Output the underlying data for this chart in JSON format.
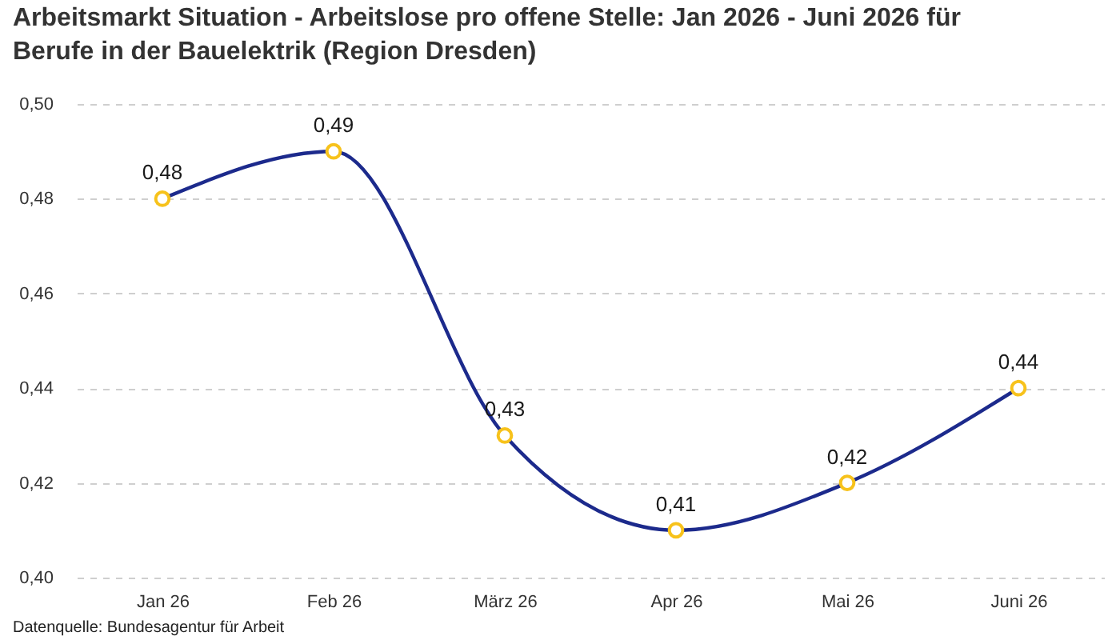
{
  "chart_data": {
    "type": "line",
    "title": "Arbeitsmarkt Situation - Arbeitslose pro offene Stelle: Jan 2026 - Juni 2026 für Berufe in der Bauelektrik (Region Dresden)",
    "categories": [
      "Jan 26",
      "Feb 26",
      "März 26",
      "Apr 26",
      "Mai 26",
      "Juni 26"
    ],
    "values": [
      0.48,
      0.49,
      0.43,
      0.41,
      0.42,
      0.44
    ],
    "color": "#1c2a8c",
    "value_labels": [
      "0,48",
      "0,49",
      "0,43",
      "0,41",
      "0,42",
      "0,44"
    ],
    "ylim": [
      0.4,
      0.5
    ],
    "yticks": [
      {
        "value": 0.4,
        "label": "0,40"
      },
      {
        "value": 0.42,
        "label": "0,42"
      },
      {
        "value": 0.44,
        "label": "0,44"
      },
      {
        "value": 0.46,
        "label": "0,46"
      },
      {
        "value": 0.48,
        "label": "0,48"
      },
      {
        "value": 0.5,
        "label": "0,50"
      }
    ],
    "grid": "y",
    "marker": "circle",
    "line_style": "solid",
    "annotations": [
      "Datenquelle: Bundesagentur für Arbeit"
    ]
  }
}
